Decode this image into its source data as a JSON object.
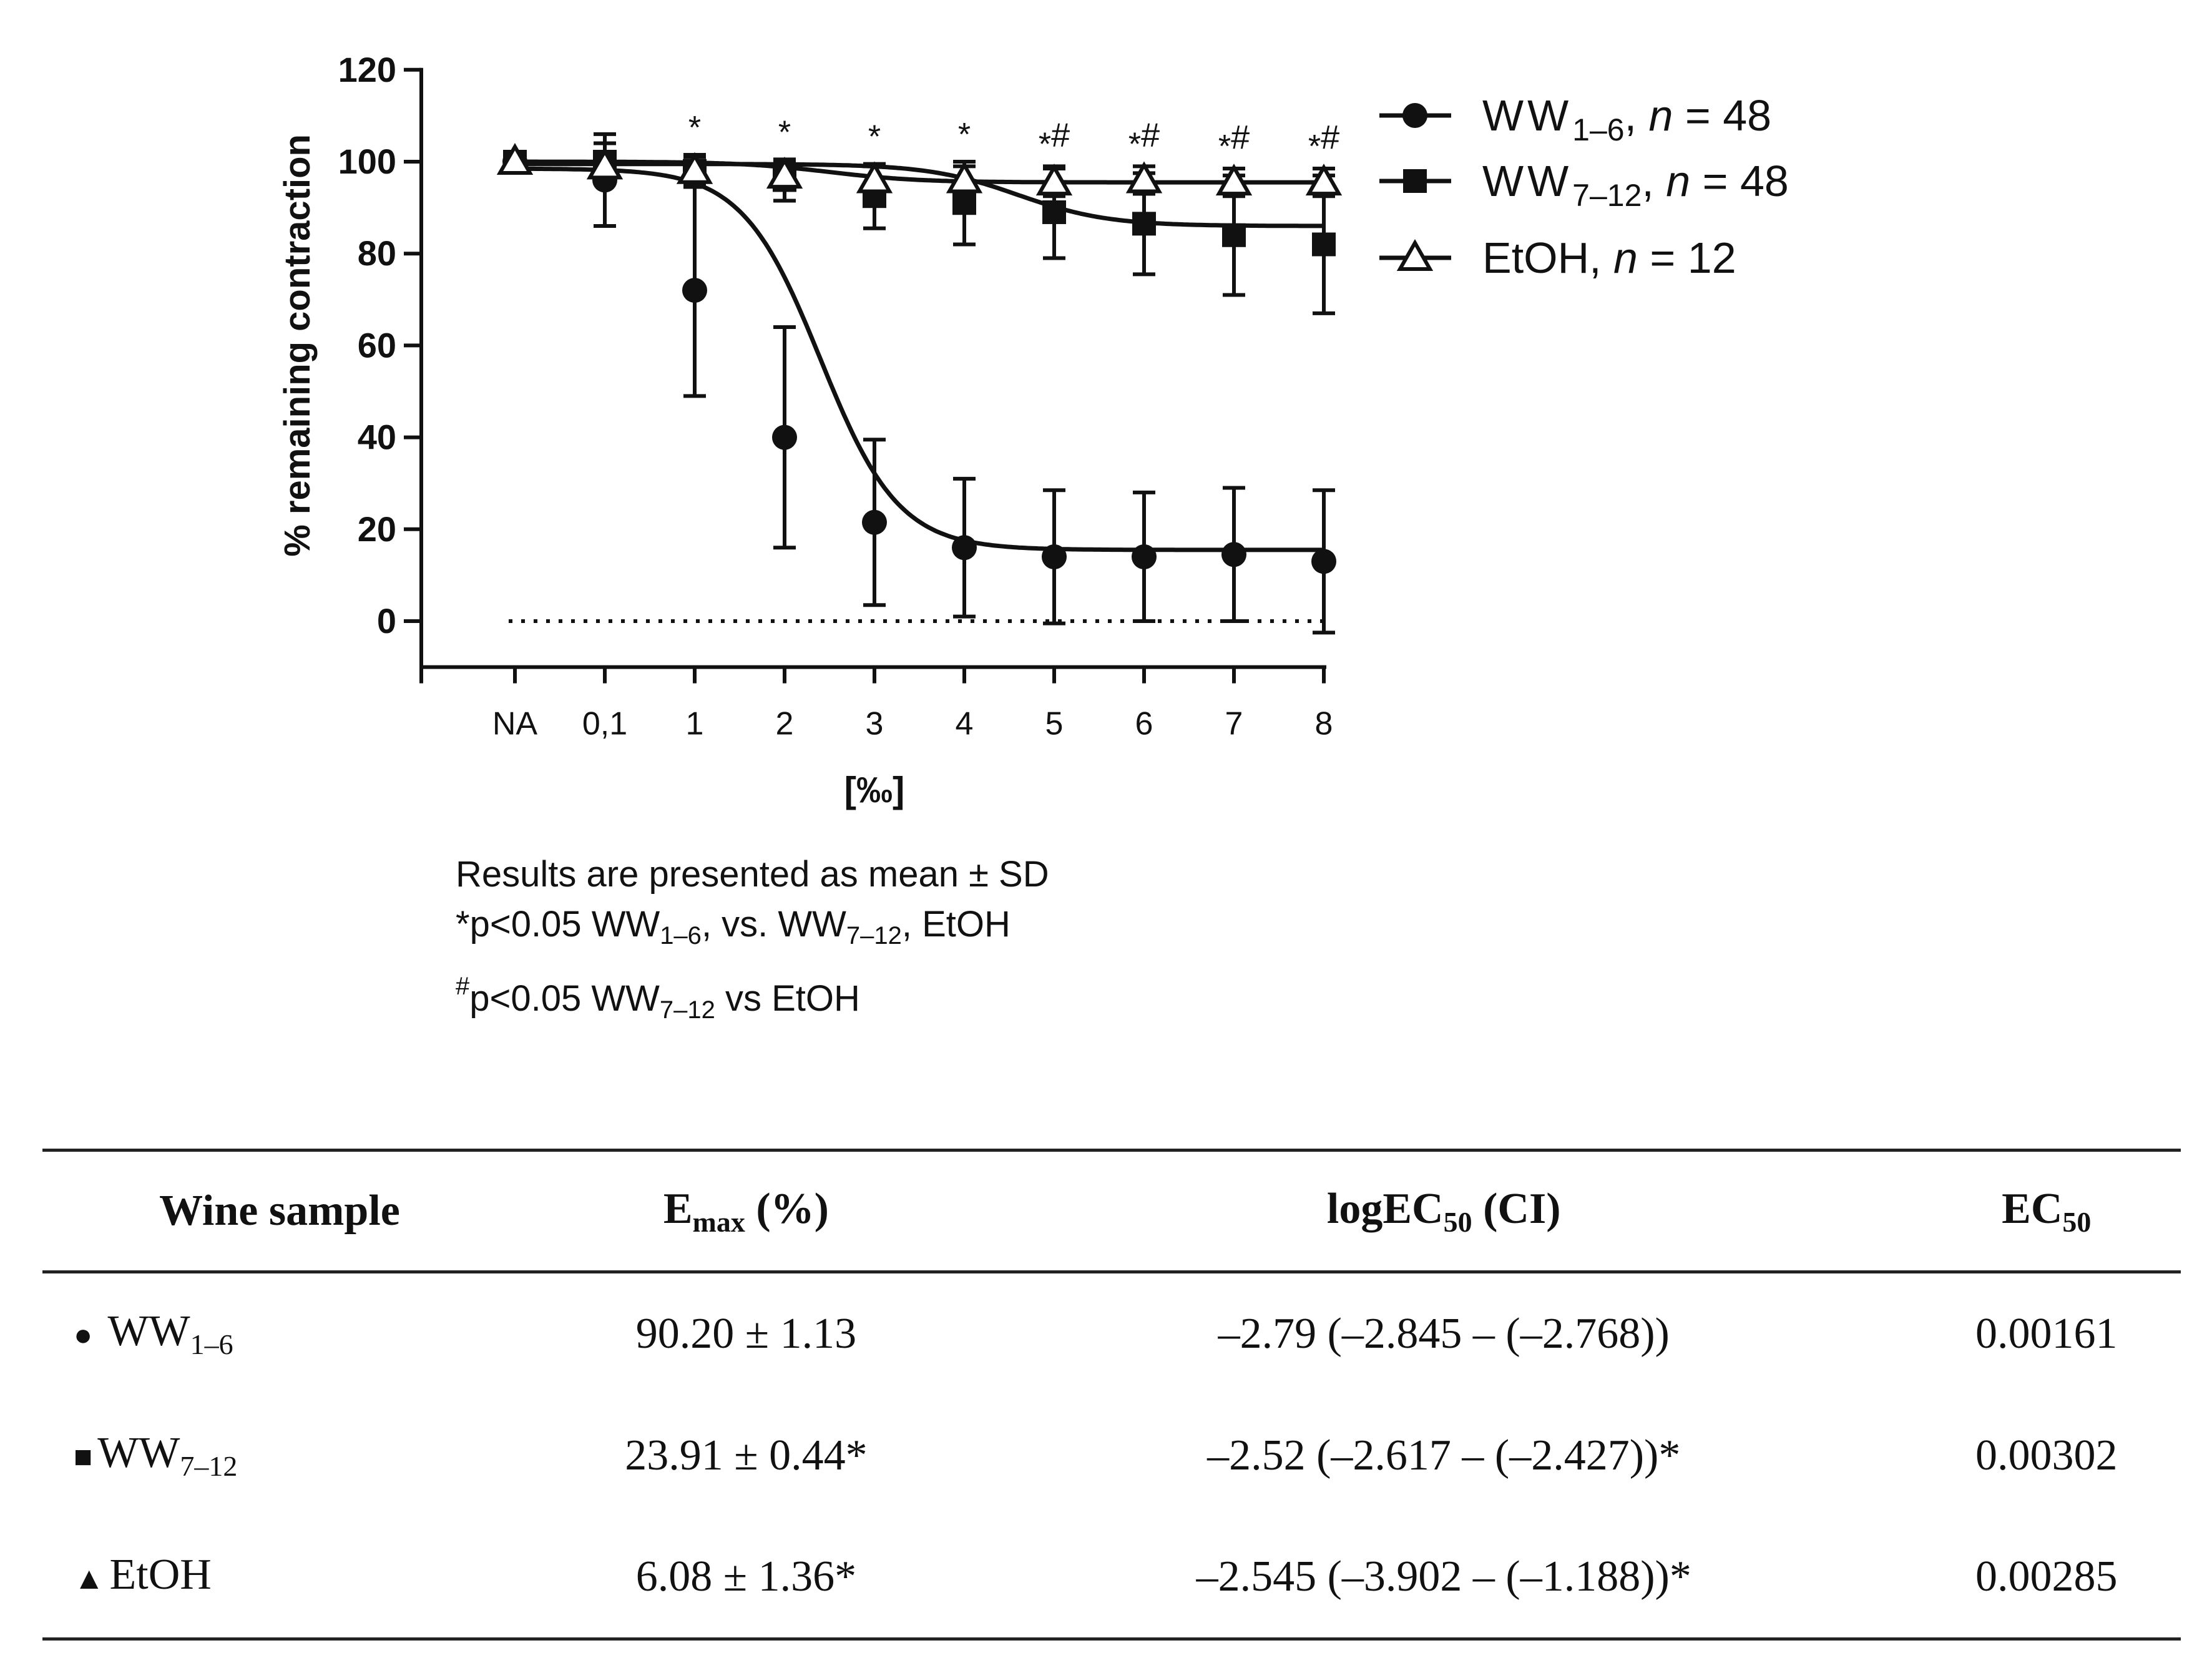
{
  "chart_data": {
    "type": "line",
    "ylabel": "% remaining contraction",
    "xlabel": "[‰]",
    "ylim": [
      -10,
      120
    ],
    "yticks": [
      "0",
      "20",
      "40",
      "60",
      "80",
      "100",
      "120"
    ],
    "categories": [
      "NA",
      "0,1",
      "1",
      "2",
      "3",
      "4",
      "5",
      "6",
      "7",
      "8"
    ],
    "reference_line": 0,
    "series": [
      {
        "name": "WW",
        "subscript": "1–6",
        "n_text": "n = 48",
        "marker": "circle",
        "values": [
          100,
          96,
          72,
          40,
          21.5,
          16,
          14,
          14,
          14.5,
          13
        ],
        "sd": [
          2,
          10,
          23,
          24,
          18,
          15,
          14.5,
          14,
          14.5,
          15.5
        ],
        "fit": {
          "top": 98.5,
          "bottom": 15.5,
          "ec50_pos": 3.4,
          "slope": 2.3
        }
      },
      {
        "name": "WW",
        "subscript": "7–12",
        "n_text": "n = 48",
        "marker": "square",
        "values": [
          100,
          100,
          98,
          96,
          92.5,
          91,
          89,
          86.5,
          84,
          82
        ],
        "sd": [
          2,
          4,
          3.5,
          4.5,
          7,
          9,
          10,
          11,
          13,
          15
        ],
        "fit": {
          "top": 99.5,
          "bottom": 86,
          "ec50_pos": 5.6,
          "slope": 2.0
        }
      },
      {
        "name": "EtOH",
        "subscript": "",
        "n_text": "n = 12",
        "marker": "triangle",
        "values": [
          100,
          99,
          98,
          97,
          96,
          96,
          95.5,
          96,
          95.5,
          95.5
        ],
        "sd": [
          1.5,
          3,
          3,
          3,
          3,
          3,
          3,
          3,
          3,
          3
        ],
        "fit": {
          "top": 100,
          "bottom": 95.5,
          "ec50_pos": 3.5,
          "slope": 2.0
        }
      }
    ],
    "significance": [
      "",
      "",
      "*",
      "*",
      "*",
      "*",
      "*#",
      "*#",
      "*#",
      "*#"
    ]
  },
  "notes": {
    "line1": "Results are presented as mean ± SD",
    "line2_prefix": "*p<0.05 WW",
    "line2_sub1": "1–6",
    "line2_mid": ", vs. WW",
    "line2_sub2": "7–12",
    "line2_suffix": ", EtOH",
    "line3_sup": "#",
    "line3_prefix": "p<0.05 WW",
    "line3_sub": "7–12",
    "line3_suffix": " vs EtOH"
  },
  "table": {
    "headers": {
      "sample": "Wine sample",
      "emax_main": "E",
      "emax_sub": "max",
      "emax_unit": " (%)",
      "logec_main": "logEC",
      "logec_sub": "50",
      "logec_unit": " (CI)",
      "ec_main": "EC",
      "ec_sub": "50"
    },
    "rows": [
      {
        "marker": "●",
        "name": "WW",
        "sub": "1–6",
        "emax": "90.20 ± 1.13",
        "logec": "–2.79 (–2.845 – (–2.768))",
        "ec50": "0.00161"
      },
      {
        "marker": "■",
        "name": "WW",
        "sub": "7–12",
        "emax": "23.91 ± 0.44*",
        "logec": "–2.52 (–2.617 – (–2.427))*",
        "ec50": "0.00302"
      },
      {
        "marker": "▲",
        "name": "EtOH",
        "sub": "",
        "emax": "6.08 ± 1.36*",
        "logec": "–2.545 (–3.902 – (–1.188))*",
        "ec50": "0.00285"
      }
    ]
  }
}
